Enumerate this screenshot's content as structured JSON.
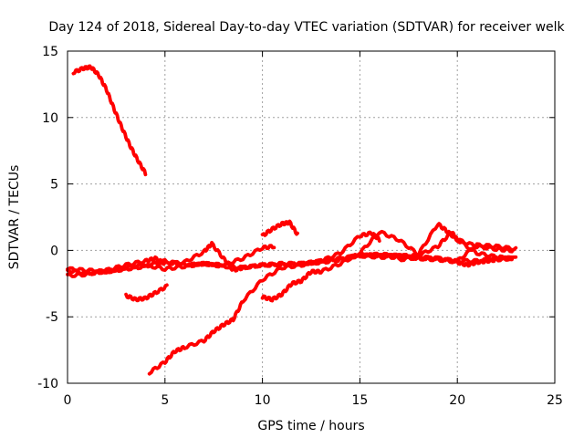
{
  "chart_data": {
    "type": "line",
    "title": "Day 124 of 2018, Sidereal Day-to-day VTEC variation (SDTVAR) for receiver welk",
    "xlabel": "GPS time / hours",
    "ylabel": "SDTVAR / TECUs",
    "xlim": [
      0,
      25
    ],
    "ylim": [
      -10,
      15
    ],
    "xticks": [
      0,
      5,
      10,
      15,
      20,
      25
    ],
    "yticks": [
      -10,
      -5,
      0,
      5,
      10,
      15
    ],
    "xtick_labels": [
      "0",
      "5",
      "10",
      "15",
      "20",
      "25"
    ],
    "ytick_labels": [
      "-10",
      "-5",
      "0",
      "5",
      "10",
      "15"
    ],
    "grid": true,
    "legend": "none",
    "series_color": "#ff0000",
    "series": [
      {
        "name": "trace-1",
        "x": [
          0.3,
          0.8,
          1.2,
          1.6,
          2.0,
          2.4,
          2.8,
          3.2,
          3.6,
          4.0
        ],
        "y": [
          13.4,
          13.7,
          13.8,
          13.2,
          12.1,
          10.6,
          9.2,
          7.9,
          6.8,
          5.8
        ]
      },
      {
        "name": "trace-2",
        "x": [
          0,
          1,
          2,
          3,
          4,
          5,
          6,
          7,
          8,
          9,
          10,
          11,
          12,
          13,
          14,
          15,
          16,
          17,
          18,
          19,
          20,
          21,
          22,
          23
        ],
        "y": [
          -1.5,
          -1.7,
          -1.6,
          -1.4,
          -1.2,
          -0.8,
          -1.1,
          -1.0,
          -1.2,
          -1.3,
          -1.1,
          -1.0,
          -1.0,
          -0.8,
          -0.6,
          -0.4,
          -0.5,
          -0.5,
          -0.6,
          -0.7,
          -0.8,
          -0.8,
          -0.6,
          -0.6
        ]
      },
      {
        "name": "trace-3",
        "x": [
          0,
          1,
          2,
          3,
          4,
          4.5,
          5,
          6,
          7,
          7.4,
          8,
          8.5,
          9,
          10,
          11,
          12,
          13,
          14,
          15,
          16,
          17,
          18,
          19,
          20,
          21,
          22,
          23
        ],
        "y": [
          -1.9,
          -1.8,
          -1.5,
          -1.1,
          -0.8,
          -0.6,
          -1.0,
          -0.9,
          -0.1,
          0.5,
          -0.6,
          -1.5,
          -1.3,
          -1.1,
          -1.1,
          -1.0,
          -0.9,
          -0.7,
          -0.3,
          -0.4,
          -0.4,
          -0.6,
          -0.6,
          -0.8,
          0.4,
          0.3,
          0.1
        ]
      },
      {
        "name": "trace-4",
        "x": [
          0,
          1,
          2,
          3,
          4,
          5,
          6,
          7,
          8,
          9,
          10,
          10.6
        ],
        "y": [
          -1.4,
          -1.5,
          -1.6,
          -1.3,
          -1.1,
          -1.4,
          -1.2,
          -1.0,
          -1.1,
          -0.6,
          0.2,
          0.3
        ]
      },
      {
        "name": "trace-5",
        "x": [
          4.2,
          5,
          5.5,
          6,
          7,
          7.5,
          8,
          8.5,
          9,
          10,
          11,
          12,
          13,
          14,
          15,
          15.6,
          16
        ],
        "y": [
          -9.2,
          -8.4,
          -7.6,
          -7.3,
          -6.8,
          -6.1,
          -5.6,
          -5.2,
          -3.8,
          -2.2,
          -1.3,
          -1.1,
          -0.8,
          -0.2,
          1.1,
          1.3,
          0.8
        ]
      },
      {
        "name": "trace-6",
        "x": [
          3.0,
          3.5,
          4.0,
          4.5,
          5.1
        ],
        "y": [
          -3.4,
          -3.7,
          -3.6,
          -3.2,
          -2.7
        ]
      },
      {
        "name": "trace-7",
        "x": [
          10.0,
          10.5,
          11.0,
          11.4,
          11.8
        ],
        "y": [
          1.1,
          1.6,
          2.0,
          2.1,
          1.2
        ]
      },
      {
        "name": "trace-8",
        "x": [
          10.0,
          10.5,
          11.0,
          11.5,
          12.0,
          12.5,
          13.0,
          14.0,
          15.0,
          16.0,
          17.0,
          18.0,
          19.0,
          19.5,
          20.0,
          21.0,
          22.0,
          22.8
        ],
        "y": [
          -3.5,
          -3.7,
          -3.3,
          -2.5,
          -2.3,
          -1.6,
          -1.6,
          -1.0,
          -0.2,
          1.4,
          0.8,
          -0.3,
          2.0,
          1.4,
          0.8,
          0.3,
          0.1,
          0.0
        ]
      },
      {
        "name": "trace-9",
        "x": [
          15,
          16,
          17,
          18,
          19,
          19.7,
          20,
          21,
          22,
          22.8
        ],
        "y": [
          -0.4,
          -0.3,
          -0.4,
          -0.4,
          0.3,
          1.4,
          0.8,
          -0.2,
          -0.5,
          -0.6
        ]
      },
      {
        "name": "trace-10",
        "x": [
          17,
          18,
          19,
          20,
          20.5,
          21,
          21.5,
          22,
          22.8
        ],
        "y": [
          -0.7,
          -0.5,
          -0.6,
          -0.9,
          -1.1,
          -0.9,
          -0.8,
          -0.7,
          -0.6
        ]
      }
    ]
  }
}
